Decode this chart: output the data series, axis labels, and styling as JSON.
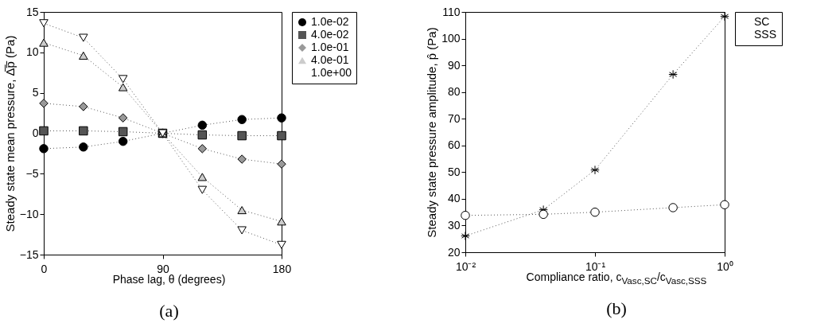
{
  "chart_data": [
    {
      "type": "line",
      "xlabel": "Phase lag, θ (degrees)",
      "ylabel": "Steady state mean pressure, Δ̅p̅ (Pa)",
      "annotations": [
        "(a)"
      ],
      "x": [
        0,
        30,
        60,
        90,
        120,
        150,
        180
      ],
      "xlim": [
        0,
        180
      ],
      "xticks": [
        0,
        90,
        180
      ],
      "ylim": [
        -15,
        15
      ],
      "yticks": [
        -15,
        -10,
        -5,
        0,
        5,
        10,
        15
      ],
      "grid": false,
      "legend": "right",
      "line_style": "dotted",
      "series": [
        {
          "name": "1.0e-02",
          "color": "#000000",
          "marker": "circle",
          "values": [
            -1.9,
            -1.7,
            -1.0,
            0,
            1.0,
            1.7,
            1.9
          ]
        },
        {
          "name": "4.0e-02",
          "color": "#555555",
          "marker": "square",
          "values": [
            0.3,
            0.3,
            0.2,
            0,
            -0.2,
            -0.3,
            -0.3
          ]
        },
        {
          "name": "1.0e-01",
          "color": "#999999",
          "marker": "diamond",
          "values": [
            3.7,
            3.3,
            1.9,
            0,
            -1.9,
            -3.2,
            -3.8
          ]
        },
        {
          "name": "4.0e-01",
          "color": "#cccccc",
          "marker": "triangle",
          "values": [
            11.2,
            9.6,
            5.7,
            0,
            -5.4,
            -9.5,
            -10.9
          ]
        },
        {
          "name": "1.0e+00",
          "color": "#ffffff",
          "marker": "triangle-down",
          "values": [
            13.6,
            11.8,
            6.7,
            0,
            -7.0,
            -12.0,
            -13.8
          ]
        }
      ]
    },
    {
      "type": "line",
      "xlabel": "Compliance ratio, c$_{Vasc,SC}$/c$_{Vasc,SSS}$",
      "ylabel": "Steady state pressure amplitude, p̂ (Pa)",
      "annotations": [
        "(b)"
      ],
      "x": [
        0.01,
        0.04,
        0.1,
        0.4,
        1
      ],
      "log": "x",
      "xlim": [
        0.01,
        1
      ],
      "xticks": [
        {
          "value": 0.01,
          "label": "10⁻²"
        },
        {
          "value": 0.1,
          "label": "10⁻¹"
        },
        {
          "value": 1,
          "label": "10⁰"
        }
      ],
      "ylim": [
        20,
        110
      ],
      "yticks": [
        20,
        30,
        40,
        50,
        60,
        70,
        80,
        90,
        100,
        110
      ],
      "grid": false,
      "legend": "right",
      "line_style": "dotted",
      "series": [
        {
          "name": "SC",
          "color": "#000000",
          "marker": "cross",
          "values": [
            26.1,
            35.9,
            50.8,
            86.6,
            108.3
          ]
        },
        {
          "name": "SSS",
          "color": "#ffffff",
          "marker": "circle",
          "values": [
            33.8,
            34.2,
            35.0,
            36.7,
            37.8
          ]
        }
      ]
    }
  ]
}
